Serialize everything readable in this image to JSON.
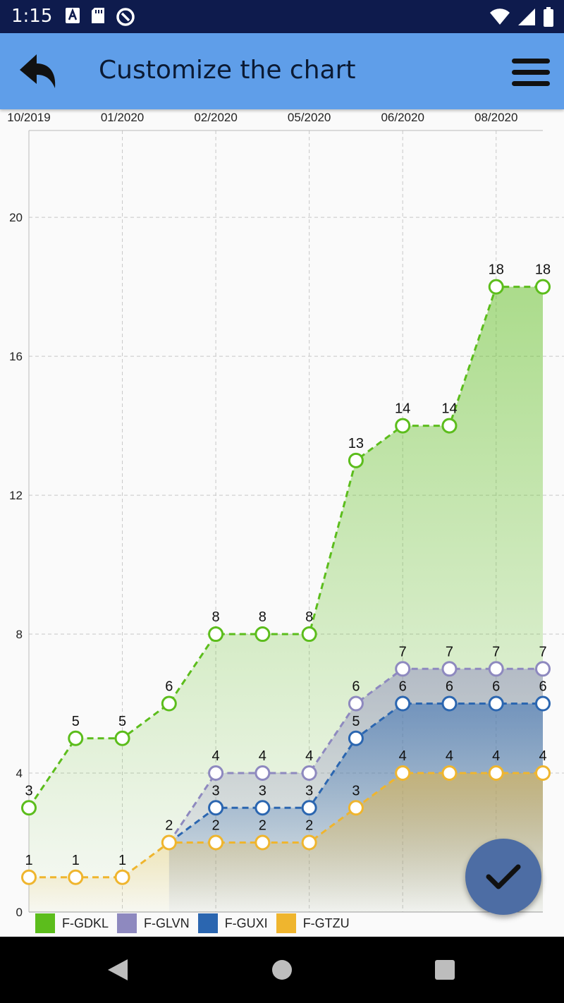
{
  "status_bar": {
    "time": "1:15"
  },
  "app_bar": {
    "title": "Customize the chart"
  },
  "colors": {
    "status_bar": "#0e1b4d",
    "app_bar": "#5f9ee9",
    "fab": "#4d6da4",
    "F-GDKL": "#5cbd1c",
    "F-GLVN": "#8e89bf",
    "F-GUXI": "#2b66b0",
    "F-GTZU": "#efb52e"
  },
  "chart_data": {
    "type": "line",
    "x_ticks": [
      "10/2019",
      "01/2020",
      "02/2020",
      "05/2020",
      "06/2020",
      "08/2020"
    ],
    "y_ticks": [
      "0",
      "4",
      "8",
      "12",
      "16",
      "20"
    ],
    "ylim": [
      0,
      22.5
    ],
    "grid": true,
    "legend_position": "bottom-left",
    "point_count": 12,
    "series": [
      {
        "name": "F-GDKL",
        "color": "#5cbd1c",
        "values": [
          3,
          5,
          5,
          6,
          8,
          8,
          8,
          13,
          14,
          14,
          18,
          18
        ],
        "labels": [
          "3",
          "5",
          "5",
          "6",
          "8",
          "8",
          "8",
          "13",
          "14",
          "14",
          "18",
          "18"
        ]
      },
      {
        "name": "F-GLVN",
        "color": "#8e89bf",
        "values": [
          null,
          null,
          null,
          2,
          4,
          4,
          4,
          6,
          7,
          7,
          7,
          7
        ],
        "labels": [
          "",
          "",
          "",
          "",
          "4",
          "4",
          "4",
          "6",
          "7",
          "7",
          "7",
          "7"
        ]
      },
      {
        "name": "F-GUXI",
        "color": "#2b66b0",
        "values": [
          null,
          null,
          null,
          2,
          3,
          3,
          3,
          5,
          6,
          6,
          6,
          6
        ],
        "labels": [
          "",
          "",
          "",
          "",
          "3",
          "3",
          "3",
          "5",
          "6",
          "6",
          "6",
          "6"
        ]
      },
      {
        "name": "F-GTZU",
        "color": "#efb52e",
        "values": [
          1,
          1,
          1,
          2,
          2,
          2,
          2,
          3,
          4,
          4,
          4,
          4
        ],
        "labels": [
          "1",
          "1",
          "1",
          "2",
          "2",
          "2",
          "2",
          "3",
          "4",
          "4",
          "4",
          "4"
        ]
      }
    ]
  }
}
